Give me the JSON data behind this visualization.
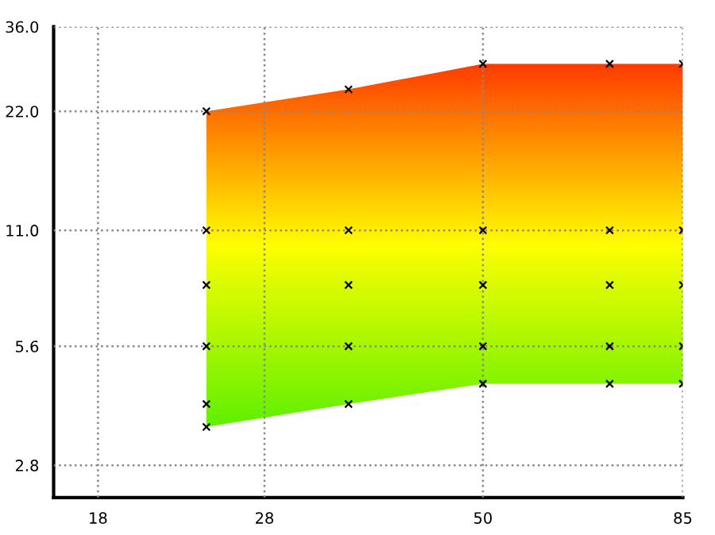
{
  "chart_data": {
    "type": "area",
    "log": "xy",
    "xlim": [
      16,
      85
    ],
    "ylim": [
      2.32,
      36.0
    ],
    "xticks": [
      18,
      28,
      50,
      85
    ],
    "yticks": [
      {
        "value": 2.8,
        "label": "2.8"
      },
      {
        "value": 5.6,
        "label": "5.6"
      },
      {
        "value": 11.0,
        "label": "11.0"
      },
      {
        "value": 22.0,
        "label": "22.0"
      },
      {
        "value": 36.0,
        "label": "36.0"
      }
    ],
    "grid": true,
    "series": [
      {
        "x": [
          24,
          35,
          50,
          70,
          85
        ],
        "values": [
          null,
          null,
          null,
          null,
          null
        ],
        "upper": [
          22.0,
          25,
          29,
          29,
          29
        ],
        "lower": [
          3.5,
          4.0,
          4.5,
          4.5,
          4.5
        ],
        "color": "#ffff00"
      },
      {
        "type": "scatter",
        "marker": "cross",
        "color": "#000000",
        "x": [
          24,
          24,
          24,
          24,
          24,
          24,
          35,
          35,
          35,
          35,
          35,
          50,
          50,
          50,
          50,
          50,
          70,
          70,
          70,
          70,
          70,
          85,
          85,
          85,
          85,
          85
        ],
        "values": [
          3.5,
          4.0,
          5.6,
          8.0,
          11.0,
          22.0,
          4.0,
          5.6,
          8.0,
          11.0,
          25,
          4.5,
          5.6,
          8.0,
          11.0,
          29,
          4.5,
          5.6,
          8.0,
          11.0,
          29,
          4.5,
          5.6,
          8.0,
          11.0,
          29
        ]
      }
    ]
  }
}
